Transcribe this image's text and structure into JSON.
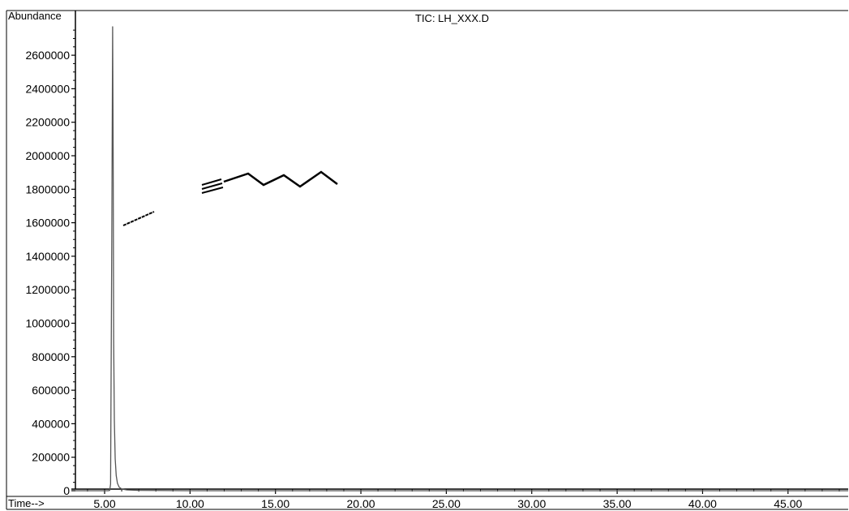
{
  "chart_data": {
    "type": "line",
    "title": "TIC: LH_XXX.D",
    "ylabel": "Abundance",
    "xlabel": "Time-->",
    "xlim": [
      3.0,
      50.0
    ],
    "ylim": [
      0,
      2800000
    ],
    "x_ticks": [
      5,
      10,
      15,
      20,
      25,
      30,
      35,
      40,
      45
    ],
    "x_tick_labels": [
      "5.00",
      "10.00",
      "15.00",
      "20.00",
      "25.00",
      "30.00",
      "35.00",
      "40.00",
      "45.00"
    ],
    "y_ticks": [
      0,
      200000,
      400000,
      600000,
      800000,
      1000000,
      1200000,
      1400000,
      1600000,
      1800000,
      2000000,
      2200000,
      2400000,
      2600000
    ],
    "y_tick_labels": [
      "0",
      "200000",
      "400000",
      "600000",
      "800000",
      "1000000",
      "1200000",
      "1400000",
      "1600000",
      "1800000",
      "2000000",
      "2200000",
      "2400000",
      "2600000"
    ],
    "grid": false,
    "series": [
      {
        "color": "#555555",
        "x": [
          3.0,
          5.0,
          5.2,
          5.3,
          5.35,
          5.42,
          5.47,
          5.5,
          5.53,
          5.57,
          5.62,
          5.68,
          5.75,
          5.85,
          6.0,
          6.3,
          7.0,
          10.0,
          20.0,
          30.0,
          40.0,
          50.0
        ],
        "y": [
          0,
          0,
          0,
          2000,
          40000,
          1500000,
          2770000,
          2050000,
          900000,
          420000,
          190000,
          90000,
          45000,
          22000,
          10000,
          5000,
          2000,
          0,
          0,
          0,
          0,
          0
        ]
      }
    ],
    "annotation": "skeletal structure of a terminal alkyne (oct-1-yne style zig-zag with triple bond)"
  }
}
